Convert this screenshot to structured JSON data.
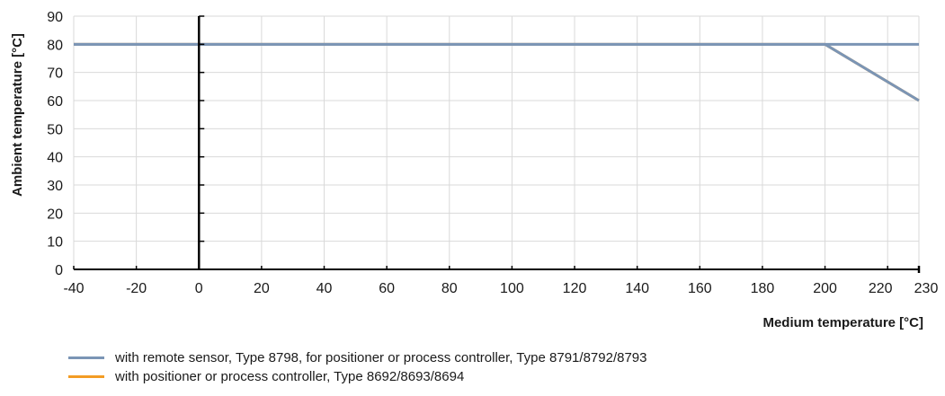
{
  "chart_data": {
    "type": "line",
    "xlabel": "Medium temperature [°C]",
    "ylabel": "Ambient temperature [°C]",
    "xlim": [
      -40,
      230
    ],
    "ylim": [
      0,
      90
    ],
    "x_ticks": [
      -40,
      -20,
      0,
      20,
      40,
      60,
      80,
      100,
      120,
      140,
      160,
      180,
      200,
      220,
      230
    ],
    "y_ticks": [
      0,
      10,
      20,
      30,
      40,
      50,
      60,
      70,
      80,
      90
    ],
    "grid": true,
    "legend_position": "bottom",
    "series": [
      {
        "name": "with remote sensor, Type 8798, for positioner or process controller, Type 8791/8792/8793",
        "color": "#7b95b5",
        "x": [
          -40,
          200,
          230
        ],
        "y": [
          80,
          80,
          80
        ]
      },
      {
        "name": "with positioner or process controller, Type 8692/8693/8694",
        "color": "#f39c24",
        "x": [
          -40,
          200,
          230
        ],
        "y": [
          80,
          80,
          60
        ]
      }
    ]
  },
  "colors": {
    "grid": "#d9d9d9",
    "axis": "#000000",
    "overlay_line": "#7b95b5"
  }
}
